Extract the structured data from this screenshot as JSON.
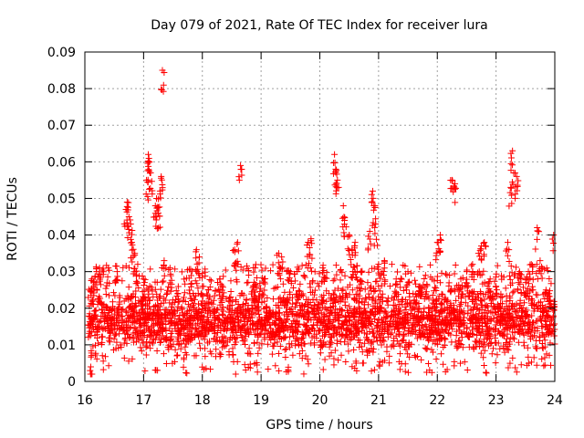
{
  "chart_data": {
    "type": "scatter",
    "title": "Day 079 of 2021, Rate Of TEC Index for receiver lura",
    "xlabel": "GPS time / hours",
    "ylabel": "ROTI / TECUs",
    "xlim": [
      16,
      24
    ],
    "ylim": [
      0,
      0.09
    ],
    "x_ticks": [
      16,
      17,
      18,
      19,
      20,
      21,
      22,
      23,
      24
    ],
    "y_ticks": [
      0,
      0.01,
      0.02,
      0.03,
      0.04,
      0.05,
      0.06,
      0.07,
      0.08,
      0.09
    ],
    "x_tick_labels": [
      "16",
      "17",
      "18",
      "19",
      "20",
      "21",
      "22",
      "23",
      "24"
    ],
    "y_tick_labels": [
      "0",
      "0.01",
      "0.02",
      "0.03",
      "0.04",
      "0.05",
      "0.06",
      "0.07",
      "0.08",
      "0.09"
    ],
    "grid": true,
    "marker": "+",
    "color": "#ff0000",
    "series": [
      {
        "name": "ROTI",
        "base_band": {
          "x_range": [
            16.05,
            24.0
          ],
          "y_typical": [
            0.005,
            0.022
          ],
          "y_max_typical": 0.032
        },
        "points": [
          [
            16.1,
            0.004
          ],
          [
            16.12,
            0.028
          ],
          [
            16.15,
            0.027
          ],
          [
            16.2,
            0.03
          ],
          [
            16.25,
            0.031
          ],
          [
            16.4,
            0.031
          ],
          [
            16.55,
            0.03
          ],
          [
            16.7,
            0.047
          ],
          [
            16.72,
            0.049
          ],
          [
            16.75,
            0.045
          ],
          [
            16.78,
            0.043
          ],
          [
            16.8,
            0.038
          ],
          [
            16.85,
            0.035
          ],
          [
            16.9,
            0.032
          ],
          [
            17.0,
            0.028
          ],
          [
            17.05,
            0.055
          ],
          [
            17.08,
            0.062
          ],
          [
            17.1,
            0.06
          ],
          [
            17.12,
            0.057
          ],
          [
            17.2,
            0.048
          ],
          [
            17.22,
            0.05
          ],
          [
            17.25,
            0.046
          ],
          [
            17.28,
            0.052
          ],
          [
            17.3,
            0.056
          ],
          [
            17.32,
            0.085
          ],
          [
            17.35,
            0.033
          ],
          [
            17.45,
            0.031
          ],
          [
            17.9,
            0.036
          ],
          [
            17.95,
            0.034
          ],
          [
            18.0,
            0.026
          ],
          [
            18.1,
            0.025
          ],
          [
            18.3,
            0.028
          ],
          [
            18.55,
            0.036
          ],
          [
            18.6,
            0.038
          ],
          [
            18.65,
            0.059
          ],
          [
            18.9,
            0.031
          ],
          [
            19.05,
            0.028
          ],
          [
            19.3,
            0.035
          ],
          [
            19.35,
            0.034
          ],
          [
            19.5,
            0.03
          ],
          [
            19.8,
            0.038
          ],
          [
            19.85,
            0.039
          ],
          [
            20.05,
            0.031
          ],
          [
            20.25,
            0.062
          ],
          [
            20.27,
            0.058
          ],
          [
            20.3,
            0.055
          ],
          [
            20.4,
            0.048
          ],
          [
            20.42,
            0.044
          ],
          [
            20.5,
            0.04
          ],
          [
            20.55,
            0.036
          ],
          [
            20.6,
            0.038
          ],
          [
            20.7,
            0.03
          ],
          [
            20.85,
            0.041
          ],
          [
            20.9,
            0.052
          ],
          [
            20.92,
            0.048
          ],
          [
            20.95,
            0.043
          ],
          [
            21.0,
            0.032
          ],
          [
            21.1,
            0.033
          ],
          [
            21.3,
            0.028
          ],
          [
            21.5,
            0.03
          ],
          [
            21.7,
            0.026
          ],
          [
            21.8,
            0.029
          ],
          [
            22.0,
            0.038
          ],
          [
            22.05,
            0.04
          ],
          [
            22.25,
            0.055
          ],
          [
            22.3,
            0.054
          ],
          [
            22.4,
            0.028
          ],
          [
            22.5,
            0.03
          ],
          [
            22.6,
            0.032
          ],
          [
            22.7,
            0.035
          ],
          [
            22.75,
            0.037
          ],
          [
            22.8,
            0.038
          ],
          [
            22.9,
            0.028
          ],
          [
            23.0,
            0.026
          ],
          [
            23.2,
            0.038
          ],
          [
            23.25,
            0.053
          ],
          [
            23.28,
            0.063
          ],
          [
            23.3,
            0.057
          ],
          [
            23.35,
            0.056
          ],
          [
            23.4,
            0.03
          ],
          [
            23.55,
            0.03
          ],
          [
            23.6,
            0.032
          ],
          [
            23.7,
            0.042
          ],
          [
            23.75,
            0.033
          ],
          [
            23.85,
            0.025
          ],
          [
            23.9,
            0.024
          ],
          [
            23.98,
            0.04
          ]
        ]
      }
    ]
  }
}
